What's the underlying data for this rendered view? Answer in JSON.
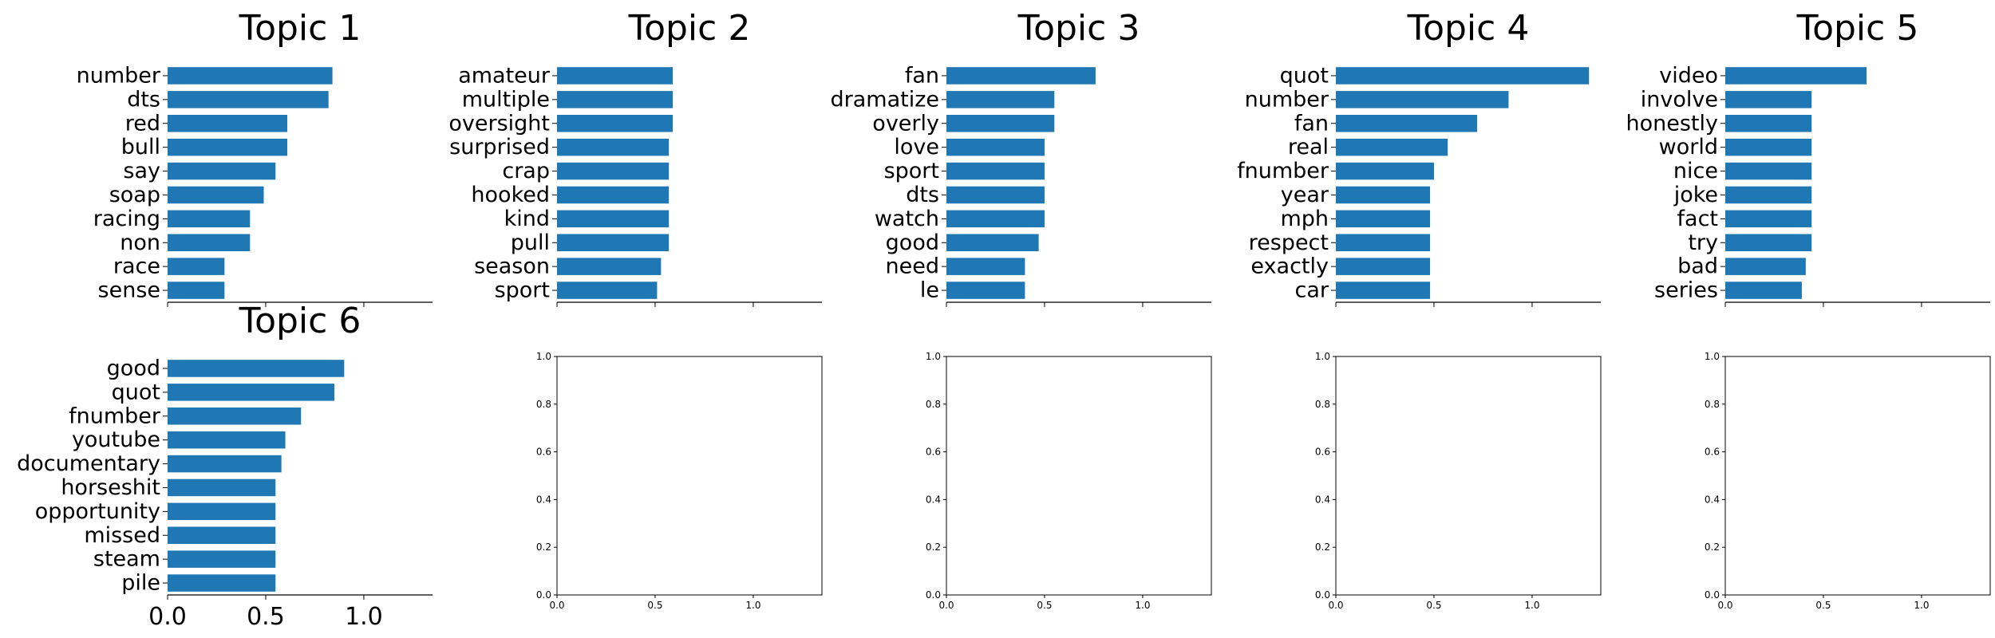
{
  "chart_data": [
    {
      "type": "bar",
      "orientation": "horizontal",
      "title": "Topic 1",
      "categories": [
        "number",
        "dts",
        "red",
        "bull",
        "say",
        "soap",
        "racing",
        "non",
        "race",
        "sense"
      ],
      "values": [
        0.84,
        0.82,
        0.61,
        0.61,
        0.55,
        0.49,
        0.42,
        0.42,
        0.29,
        0.29
      ],
      "xlim": [
        0,
        1.35
      ],
      "x_ticks": [],
      "frame": "bottom-only"
    },
    {
      "type": "bar",
      "orientation": "horizontal",
      "title": "Topic 2",
      "categories": [
        "amateur",
        "multiple",
        "oversight",
        "surprised",
        "crap",
        "hooked",
        "kind",
        "pull",
        "season",
        "sport"
      ],
      "values": [
        0.59,
        0.59,
        0.59,
        0.57,
        0.57,
        0.57,
        0.57,
        0.57,
        0.53,
        0.51
      ],
      "xlim": [
        0,
        1.35
      ],
      "x_ticks": [],
      "frame": "bottom-only"
    },
    {
      "type": "bar",
      "orientation": "horizontal",
      "title": "Topic 3",
      "categories": [
        "fan",
        "dramatize",
        "overly",
        "love",
        "sport",
        "dts",
        "watch",
        "good",
        "need",
        "le"
      ],
      "values": [
        0.76,
        0.55,
        0.55,
        0.5,
        0.5,
        0.5,
        0.5,
        0.47,
        0.4,
        0.4
      ],
      "xlim": [
        0,
        1.35
      ],
      "x_ticks": [],
      "frame": "bottom-only"
    },
    {
      "type": "bar",
      "orientation": "horizontal",
      "title": "Topic 4",
      "categories": [
        "quot",
        "number",
        "fan",
        "real",
        "fnumber",
        "year",
        "mph",
        "respect",
        "exactly",
        "car"
      ],
      "values": [
        1.29,
        0.88,
        0.72,
        0.57,
        0.5,
        0.48,
        0.48,
        0.48,
        0.48,
        0.48
      ],
      "xlim": [
        0,
        1.35
      ],
      "x_ticks": [],
      "frame": "bottom-only"
    },
    {
      "type": "bar",
      "orientation": "horizontal",
      "title": "Topic 5",
      "categories": [
        "video",
        "involve",
        "honestly",
        "world",
        "nice",
        "joke",
        "fact",
        "try",
        "bad",
        "series"
      ],
      "values": [
        0.72,
        0.44,
        0.44,
        0.44,
        0.44,
        0.44,
        0.44,
        0.44,
        0.41,
        0.39
      ],
      "xlim": [
        0,
        1.35
      ],
      "x_ticks": [],
      "frame": "bottom-only"
    },
    {
      "type": "bar",
      "orientation": "horizontal",
      "title": "Topic 6",
      "categories": [
        "good",
        "quot",
        "fnumber",
        "youtube",
        "documentary",
        "horseshit",
        "opportunity",
        "missed",
        "steam",
        "pile"
      ],
      "values": [
        0.9,
        0.85,
        0.68,
        0.6,
        0.58,
        0.55,
        0.55,
        0.55,
        0.55,
        0.55
      ],
      "xlim": [
        0,
        1.35
      ],
      "x_ticks": [
        "0.0",
        "0.5",
        "1.0"
      ],
      "frame": "bottom-only"
    },
    {
      "type": "empty",
      "title": "",
      "xlim": [
        0,
        1.35
      ],
      "ylim": [
        0,
        1
      ],
      "x_ticks": [
        "0.0",
        "0.5",
        "1.0"
      ],
      "y_ticks": [
        "0.0",
        "0.2",
        "0.4",
        "0.6",
        "0.8",
        "1.0"
      ],
      "frame": "box"
    },
    {
      "type": "empty",
      "title": "",
      "xlim": [
        0,
        1.35
      ],
      "ylim": [
        0,
        1
      ],
      "x_ticks": [
        "0.0",
        "0.5",
        "1.0"
      ],
      "y_ticks": [
        "0.0",
        "0.2",
        "0.4",
        "0.6",
        "0.8",
        "1.0"
      ],
      "frame": "box"
    },
    {
      "type": "empty",
      "title": "",
      "xlim": [
        0,
        1.35
      ],
      "ylim": [
        0,
        1
      ],
      "x_ticks": [
        "0.0",
        "0.5",
        "1.0"
      ],
      "y_ticks": [
        "0.0",
        "0.2",
        "0.4",
        "0.6",
        "0.8",
        "1.0"
      ],
      "frame": "box"
    },
    {
      "type": "empty",
      "title": "",
      "xlim": [
        0,
        1.35
      ],
      "ylim": [
        0,
        1
      ],
      "x_ticks": [
        "0.0",
        "0.5",
        "1.0"
      ],
      "y_ticks": [
        "0.0",
        "0.2",
        "0.4",
        "0.6",
        "0.8",
        "1.0"
      ],
      "frame": "box"
    }
  ],
  "colors": {
    "bar": "#1f77b4",
    "axis": "#000000",
    "background": "#ffffff"
  }
}
